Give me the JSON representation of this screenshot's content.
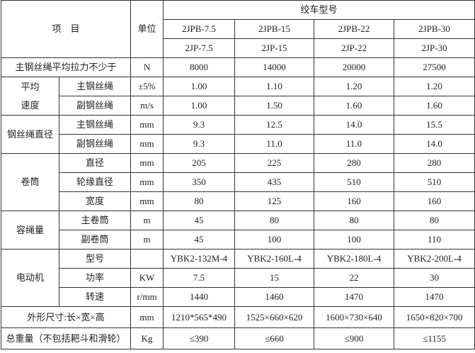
{
  "header": {
    "item_label": "项　目",
    "unit_label": "单位",
    "model_group_label": "绞车型号",
    "models_jpb": [
      "2JPB-7.5",
      "2JPB-15",
      "2JPB-22",
      "2JPB-30"
    ],
    "models_jp": [
      "2JP-7.5",
      "2JP-15",
      "2JP-22",
      "2JP-30"
    ]
  },
  "sections": [
    {
      "label": "主钢丝绳平均拉力不少于",
      "unit": "N",
      "values": [
        "8000",
        "14000",
        "20000",
        "27500"
      ]
    },
    {
      "group": "平均\n速度",
      "rows": [
        {
          "item": "主钢丝绳",
          "unit": "±5%",
          "values": [
            "1.00",
            "1.10",
            "1.20",
            "1.20"
          ]
        },
        {
          "item": "副钢丝绳",
          "unit": "m/s",
          "values": [
            "1.00",
            "1.50",
            "1.60",
            "1.60"
          ]
        }
      ]
    },
    {
      "group": "钢丝绳直径",
      "rows": [
        {
          "item": "主钢丝绳",
          "unit": "mm",
          "values": [
            "9.3",
            "12.5",
            "14.0",
            "15.5"
          ]
        },
        {
          "item": "副钢丝绳",
          "unit": "mm",
          "values": [
            "9.3",
            "11.0",
            "11.0",
            "14.0"
          ]
        }
      ]
    },
    {
      "group": "卷筒",
      "rows": [
        {
          "item": "直径",
          "unit": "mm",
          "values": [
            "205",
            "225",
            "280",
            "280"
          ]
        },
        {
          "item": "轮缘直径",
          "unit": "mm",
          "values": [
            "350",
            "435",
            "510",
            "510"
          ]
        },
        {
          "item": "宽度",
          "unit": "mm",
          "values": [
            "80",
            "125",
            "160",
            "160"
          ]
        }
      ]
    },
    {
      "group": "容绳量",
      "rows": [
        {
          "item": "主卷筒",
          "unit": "m",
          "values": [
            "45",
            "80",
            "80",
            "80"
          ]
        },
        {
          "item": "副卷筒",
          "unit": "m",
          "values": [
            "45",
            "100",
            "100",
            "110"
          ]
        }
      ]
    },
    {
      "group": "电动机",
      "rows": [
        {
          "item": "型号",
          "unit": "",
          "values": [
            "YBK2-132M-4",
            "YBK2-160L-4",
            "YBK2-180L-4",
            "YBK2-200L-4"
          ]
        },
        {
          "item": "功率",
          "unit": "KW",
          "values": [
            "7.5",
            "15",
            "22",
            "30"
          ]
        },
        {
          "item": "转速",
          "unit": "r/mm",
          "values": [
            "1440",
            "1460",
            "1470",
            "1470"
          ]
        }
      ]
    },
    {
      "label": "外形尺寸:长×宽×高",
      "unit": "mm",
      "values": [
        "1210*565*490",
        "1525×660×620",
        "1600×730×640",
        "1650×820×700"
      ],
      "tall": true
    },
    {
      "label": "总重量（不包括耙斗和滑轮）",
      "unit": "Kg",
      "values": [
        "≤390",
        "≤660",
        "≤900",
        "≤1155"
      ],
      "tall": true
    }
  ]
}
